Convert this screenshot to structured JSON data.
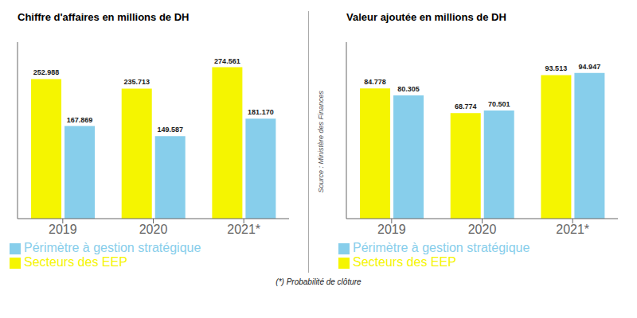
{
  "chart_data": [
    {
      "type": "bar",
      "title": "Chiffre d'affaires en millions de DH",
      "categories": [
        "2019",
        "2020",
        "2021*"
      ],
      "series": [
        {
          "name": "Secteurs des EEP",
          "color": "#F5F500",
          "values": [
            252.988,
            235.713,
            274.561
          ],
          "value_labels": [
            "252.988",
            "235.713",
            "274.561"
          ]
        },
        {
          "name": "Périmètre à gestion stratégique",
          "color": "#87CEEB",
          "values": [
            167.869,
            149.587,
            181.17
          ],
          "value_labels": [
            "167.869",
            "149.587",
            "181.170"
          ]
        }
      ],
      "ylim": [
        0,
        320
      ],
      "data_labels": true,
      "tick_labels": "x",
      "grid": false,
      "legend": "bottom"
    },
    {
      "type": "bar",
      "title": "Valeur ajoutée en millions de DH",
      "categories": [
        "2019",
        "2020",
        "2021*"
      ],
      "series": [
        {
          "name": "Secteurs des EEP",
          "color": "#F5F500",
          "values": [
            84.778,
            68.774,
            93.513
          ],
          "value_labels": [
            "84.778",
            "68.774",
            "93.513"
          ]
        },
        {
          "name": "Périmètre à gestion stratégique",
          "color": "#87CEEB",
          "values": [
            80.305,
            70.501,
            94.947
          ],
          "value_labels": [
            "80.305",
            "70.501",
            "94.947"
          ]
        }
      ],
      "ylim": [
        0,
        115
      ],
      "data_labels": true,
      "tick_labels": "x",
      "grid": false,
      "legend": "bottom",
      "annotations": [
        "Source : Ministère des Finances",
        "(*) Probabilité de clôture"
      ]
    }
  ]
}
